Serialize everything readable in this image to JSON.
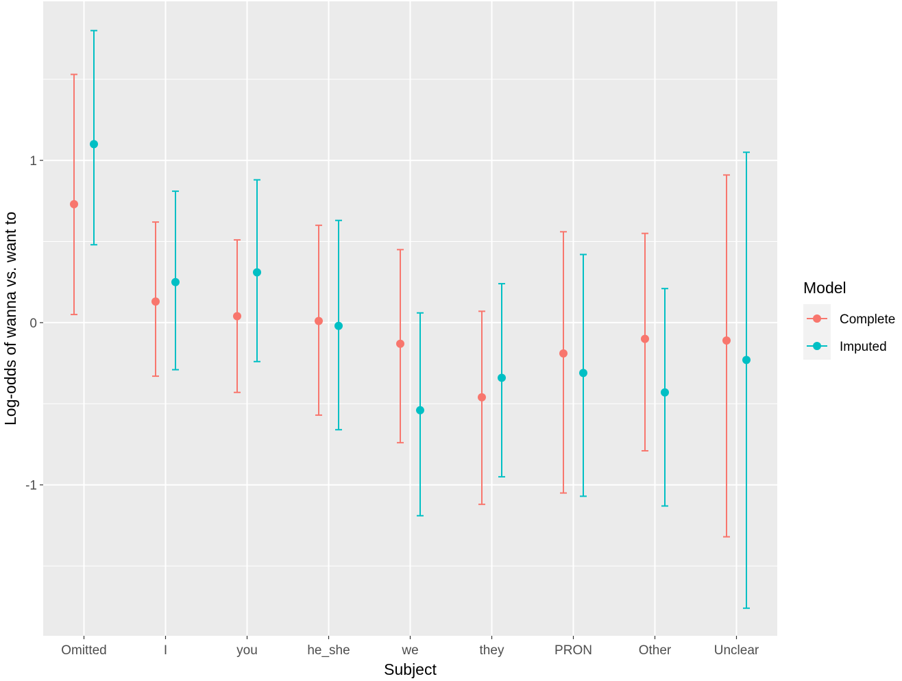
{
  "chart_data": {
    "type": "errorbar",
    "xlabel": "Subject",
    "ylabel": "Log-odds of wanna vs. want to",
    "categories": [
      "Omitted",
      "I",
      "you",
      "he_she",
      "we",
      "they",
      "PRON",
      "Other",
      "Unclear"
    ],
    "y_ticks": [
      -1,
      0,
      1
    ],
    "y_tick_labels": [
      "-1",
      "0",
      "1"
    ],
    "ylim": [
      -1.93,
      1.98
    ],
    "grid": true,
    "legend": {
      "title": "Model",
      "position": "right"
    },
    "series": [
      {
        "name": "Complete",
        "color": "#F8766D",
        "estimates": [
          0.73,
          0.13,
          0.04,
          0.01,
          -0.13,
          -0.46,
          -0.19,
          -0.1,
          -0.11
        ],
        "lower": [
          0.05,
          -0.33,
          -0.43,
          -0.57,
          -0.74,
          -1.12,
          -1.05,
          -0.79,
          -1.32
        ],
        "upper": [
          1.53,
          0.62,
          0.51,
          0.6,
          0.45,
          0.07,
          0.56,
          0.55,
          0.91
        ]
      },
      {
        "name": "Imputed",
        "color": "#00BFC4",
        "estimates": [
          1.1,
          0.25,
          0.31,
          -0.02,
          -0.54,
          -0.34,
          -0.31,
          -0.43,
          -0.23
        ],
        "lower": [
          0.48,
          -0.29,
          -0.24,
          -0.66,
          -1.19,
          -0.95,
          -1.07,
          -1.13,
          -1.76
        ],
        "upper": [
          1.8,
          0.81,
          0.88,
          0.63,
          0.06,
          0.24,
          0.42,
          0.21,
          1.05
        ]
      }
    ]
  }
}
